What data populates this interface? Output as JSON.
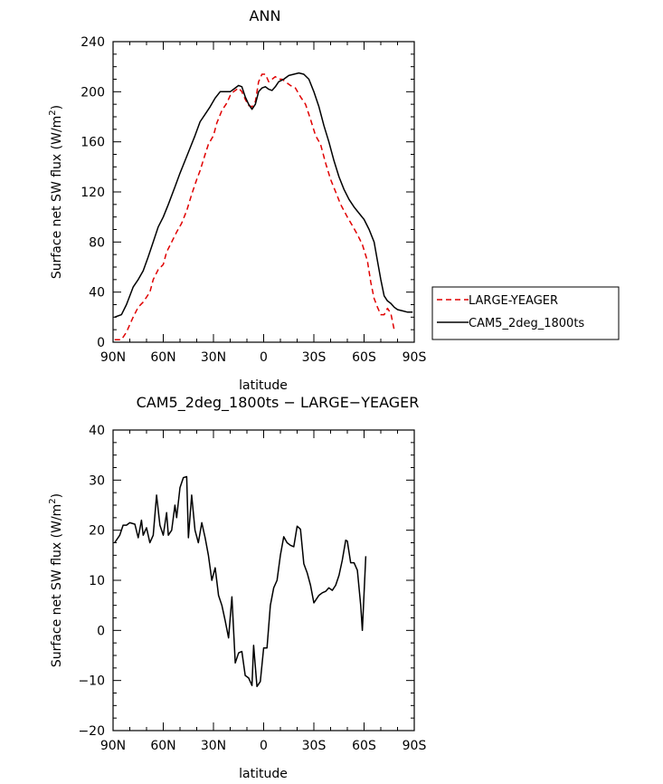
{
  "chart_data": [
    {
      "type": "line",
      "title": "ANN",
      "xlabel": "latitude",
      "ylabel": "Surface net SW flux (W/m²)",
      "ylabel_main": "Surface net SW flux (W/m",
      "ylabel_sup": "2",
      "ylabel_end": ")",
      "xlim": [
        -90,
        90
      ],
      "ylim": [
        0,
        240
      ],
      "x_ticks": [
        -90,
        -60,
        -30,
        0,
        30,
        60,
        90
      ],
      "x_tick_labels": [
        "90N",
        "60N",
        "30N",
        "0",
        "30S",
        "60S",
        "90S"
      ],
      "y_ticks": [
        0,
        40,
        80,
        120,
        160,
        200,
        240
      ],
      "y_tick_labels": [
        "0",
        "40",
        "80",
        "120",
        "160",
        "200",
        "240"
      ],
      "legend": {
        "placement": "right"
      },
      "series": [
        {
          "name": "LARGE-YEAGER",
          "color": "#e00000",
          "dash": true,
          "points": [
            [
              -89,
              2
            ],
            [
              -85,
              2
            ],
            [
              -82,
              8
            ],
            [
              -78,
              20
            ],
            [
              -75,
              28
            ],
            [
              -72,
              32
            ],
            [
              -68,
              40
            ],
            [
              -66,
              50
            ],
            [
              -63,
              58
            ],
            [
              -60,
              62
            ],
            [
              -58,
              72
            ],
            [
              -55,
              80
            ],
            [
              -52,
              88
            ],
            [
              -49,
              95
            ],
            [
              -46,
              105
            ],
            [
              -43,
              118
            ],
            [
              -40,
              130
            ],
            [
              -38,
              137
            ],
            [
              -35,
              150
            ],
            [
              -33,
              158
            ],
            [
              -30,
              165
            ],
            [
              -28,
              175
            ],
            [
              -25,
              185
            ],
            [
              -22,
              191
            ],
            [
              -20,
              197
            ],
            [
              -18,
              200
            ],
            [
              -15,
              203
            ],
            [
              -13,
              200
            ],
            [
              -11,
              194
            ],
            [
              -9,
              189
            ],
            [
              -7,
              188
            ],
            [
              -5,
              192
            ],
            [
              -3,
              208
            ],
            [
              -1,
              214
            ],
            [
              1,
              214
            ],
            [
              3,
              208
            ],
            [
              5,
              210
            ],
            [
              7,
              212
            ],
            [
              9,
              210
            ],
            [
              11,
              210
            ],
            [
              13,
              208
            ],
            [
              16,
              205
            ],
            [
              19,
              203
            ],
            [
              22,
              196
            ],
            [
              25,
              190
            ],
            [
              28,
              178
            ],
            [
              31,
              165
            ],
            [
              34,
              158
            ],
            [
              37,
              143
            ],
            [
              40,
              130
            ],
            [
              43,
              120
            ],
            [
              46,
              110
            ],
            [
              50,
              100
            ],
            [
              53,
              93
            ],
            [
              56,
              86
            ],
            [
              59,
              78
            ],
            [
              62,
              65
            ],
            [
              64,
              48
            ],
            [
              66,
              35
            ],
            [
              68,
              28
            ],
            [
              70,
              22
            ],
            [
              72,
              22
            ],
            [
              74,
              27
            ],
            [
              76,
              23
            ],
            [
              78,
              10
            ]
          ]
        },
        {
          "name": "CAM5_2deg_1800ts",
          "color": "#000000",
          "dash": false,
          "points": [
            [
              -89,
              20
            ],
            [
              -85,
              22
            ],
            [
              -82,
              30
            ],
            [
              -78,
              44
            ],
            [
              -75,
              50
            ],
            [
              -72,
              57
            ],
            [
              -69,
              68
            ],
            [
              -66,
              80
            ],
            [
              -63,
              92
            ],
            [
              -60,
              100
            ],
            [
              -57,
              110
            ],
            [
              -53,
              124
            ],
            [
              -50,
              135
            ],
            [
              -47,
              145
            ],
            [
              -44,
              155
            ],
            [
              -41,
              165
            ],
            [
              -38,
              176
            ],
            [
              -35,
              182
            ],
            [
              -32,
              188
            ],
            [
              -29,
              195
            ],
            [
              -26,
              200
            ],
            [
              -23,
              200
            ],
            [
              -20,
              200
            ],
            [
              -18,
              202
            ],
            [
              -15,
              205
            ],
            [
              -13,
              204
            ],
            [
              -11,
              196
            ],
            [
              -9,
              190
            ],
            [
              -7,
              186
            ],
            [
              -5,
              190
            ],
            [
              -3,
              200
            ],
            [
              -1,
              203
            ],
            [
              1,
              204
            ],
            [
              3,
              202
            ],
            [
              5,
              201
            ],
            [
              7,
              204
            ],
            [
              9,
              208
            ],
            [
              12,
              210
            ],
            [
              15,
              213
            ],
            [
              18,
              214
            ],
            [
              21,
              215
            ],
            [
              24,
              214
            ],
            [
              27,
              210
            ],
            [
              30,
              200
            ],
            [
              33,
              188
            ],
            [
              36,
              173
            ],
            [
              39,
              160
            ],
            [
              42,
              145
            ],
            [
              45,
              132
            ],
            [
              48,
              122
            ],
            [
              51,
              114
            ],
            [
              54,
              108
            ],
            [
              57,
              103
            ],
            [
              60,
              98
            ],
            [
              63,
              90
            ],
            [
              66,
              80
            ],
            [
              68,
              65
            ],
            [
              70,
              50
            ],
            [
              72,
              37
            ],
            [
              74,
              33
            ],
            [
              76,
              31
            ],
            [
              78,
              28
            ],
            [
              80,
              26
            ],
            [
              83,
              25
            ],
            [
              86,
              24
            ],
            [
              89,
              24
            ]
          ]
        }
      ]
    },
    {
      "type": "line",
      "title": "CAM5_2deg_1800ts − LARGE−YEAGER",
      "xlabel": "latitude",
      "ylabel": "Surface net SW flux (W/m²)",
      "ylabel_main": "Surface net SW flux (W/m",
      "ylabel_sup": "2",
      "ylabel_end": ")",
      "xlim": [
        -90,
        90
      ],
      "ylim": [
        -20,
        40
      ],
      "x_ticks": [
        -90,
        -60,
        -30,
        0,
        30,
        60,
        90
      ],
      "x_tick_labels": [
        "90N",
        "60N",
        "30N",
        "0",
        "30S",
        "60S",
        "90S"
      ],
      "y_ticks": [
        -20,
        -10,
        0,
        10,
        20,
        30,
        40
      ],
      "y_tick_labels": [
        "−20",
        "−10",
        "0",
        "10",
        "20",
        "30",
        "40"
      ],
      "series": [
        {
          "name": "",
          "color": "#000000",
          "dash": false,
          "points": [
            [
              -89,
              17.5
            ],
            [
              -86,
              19
            ],
            [
              -84,
              21
            ],
            [
              -82,
              21
            ],
            [
              -80,
              21.5
            ],
            [
              -77,
              21.2
            ],
            [
              -75,
              18.5
            ],
            [
              -73,
              22
            ],
            [
              -72,
              19
            ],
            [
              -70,
              20.5
            ],
            [
              -68,
              17.5
            ],
            [
              -66,
              19
            ],
            [
              -64,
              27
            ],
            [
              -62,
              21
            ],
            [
              -60,
              19
            ],
            [
              -58,
              23.5
            ],
            [
              -57,
              19
            ],
            [
              -55,
              20
            ],
            [
              -53,
              25
            ],
            [
              -52,
              22.5
            ],
            [
              -50,
              28.5
            ],
            [
              -48,
              30.5
            ],
            [
              -46,
              30.7
            ],
            [
              -45,
              18.5
            ],
            [
              -43,
              27
            ],
            [
              -41,
              20
            ],
            [
              -39,
              17.5
            ],
            [
              -37,
              21.5
            ],
            [
              -35,
              18.5
            ],
            [
              -33,
              15
            ],
            [
              -31,
              10
            ],
            [
              -29,
              12.5
            ],
            [
              -27,
              7
            ],
            [
              -25,
              5
            ],
            [
              -23,
              2
            ],
            [
              -21,
              -1.5
            ],
            [
              -19,
              6.7
            ],
            [
              -17,
              -6.5
            ],
            [
              -15,
              -4.5
            ],
            [
              -13,
              -4.2
            ],
            [
              -11,
              -9
            ],
            [
              -9,
              -9.5
            ],
            [
              -7,
              -11
            ],
            [
              -6,
              -3
            ],
            [
              -4,
              -11.2
            ],
            [
              -2,
              -10.2
            ],
            [
              0,
              -3.5
            ],
            [
              2,
              -3.5
            ],
            [
              4,
              5
            ],
            [
              6,
              8.5
            ],
            [
              8,
              10
            ],
            [
              10,
              15
            ],
            [
              12,
              18.7
            ],
            [
              14,
              17.5
            ],
            [
              16,
              17
            ],
            [
              18,
              16.7
            ],
            [
              20,
              20.8
            ],
            [
              22,
              20.2
            ],
            [
              24,
              13.3
            ],
            [
              26,
              11.5
            ],
            [
              28,
              9
            ],
            [
              30,
              5.5
            ],
            [
              33,
              7
            ],
            [
              35,
              7.5
            ],
            [
              37,
              7.8
            ],
            [
              39,
              8.5
            ],
            [
              41,
              8
            ],
            [
              43,
              9
            ],
            [
              45,
              11
            ],
            [
              47,
              14
            ],
            [
              49,
              18
            ],
            [
              50,
              17.8
            ],
            [
              52,
              13.5
            ],
            [
              54,
              13.5
            ],
            [
              56,
              12
            ],
            [
              58,
              5
            ],
            [
              59,
              0
            ],
            [
              61,
              14.8
            ]
          ]
        }
      ]
    }
  ]
}
